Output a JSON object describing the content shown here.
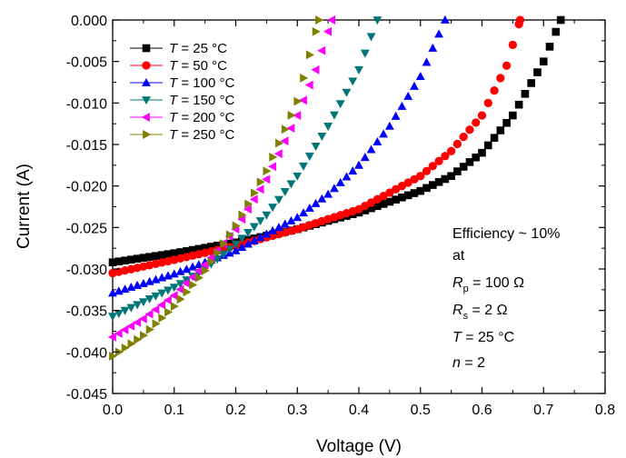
{
  "chart_data": {
    "type": "scatter",
    "xlabel": "Voltage (V)",
    "ylabel": "Current (A)",
    "xlim": [
      0.0,
      0.8
    ],
    "ylim": [
      -0.045,
      0.0
    ],
    "xticks": [
      "0.0",
      "0.1",
      "0.2",
      "0.3",
      "0.4",
      "0.5",
      "0.6",
      "0.7",
      "0.8"
    ],
    "yticks": [
      "0.000",
      "-0.005",
      "-0.010",
      "-0.015",
      "-0.020",
      "-0.025",
      "-0.030",
      "-0.035",
      "-0.040",
      "-0.045"
    ],
    "grid": false,
    "legend_position": "top-left",
    "series": [
      {
        "name_var": "T",
        "name_rest": " = 25 °C",
        "marker": "square",
        "color": "#000000",
        "isc": -0.0292,
        "voc": 0.728,
        "points": [
          [
            0.0,
            -0.0292
          ],
          [
            0.1,
            -0.0281
          ],
          [
            0.2,
            -0.0268
          ],
          [
            0.3,
            -0.0252
          ],
          [
            0.4,
            -0.0232
          ],
          [
            0.5,
            -0.0206
          ],
          [
            0.55,
            -0.0188
          ],
          [
            0.6,
            -0.016
          ],
          [
            0.65,
            -0.0115
          ],
          [
            0.7,
            -0.005
          ],
          [
            0.728,
            0.0
          ]
        ]
      },
      {
        "name_var": "T",
        "name_rest": " = 50 °C",
        "marker": "circle",
        "color": "#ff0000",
        "isc": -0.0305,
        "voc": 0.662,
        "points": [
          [
            0.0,
            -0.0305
          ],
          [
            0.1,
            -0.0289
          ],
          [
            0.2,
            -0.0272
          ],
          [
            0.3,
            -0.0252
          ],
          [
            0.4,
            -0.0228
          ],
          [
            0.5,
            -0.0188
          ],
          [
            0.55,
            -0.0158
          ],
          [
            0.6,
            -0.0115
          ],
          [
            0.64,
            -0.0055
          ],
          [
            0.662,
            0.0
          ]
        ]
      },
      {
        "name_var": "T",
        "name_rest": " = 100 °C",
        "marker": "triangle-up",
        "color": "#0000ff",
        "isc": -0.0329,
        "voc": 0.54,
        "points": [
          [
            0.0,
            -0.0329
          ],
          [
            0.1,
            -0.0306
          ],
          [
            0.2,
            -0.0278
          ],
          [
            0.3,
            -0.0238
          ],
          [
            0.35,
            -0.021
          ],
          [
            0.4,
            -0.0175
          ],
          [
            0.45,
            -0.0128
          ],
          [
            0.5,
            -0.0068
          ],
          [
            0.54,
            0.0
          ]
        ]
      },
      {
        "name_var": "T",
        "name_rest": " = 150 °C",
        "marker": "triangle-down",
        "color": "#007777",
        "isc": -0.0357,
        "voc": 0.43,
        "points": [
          [
            0.0,
            -0.0357
          ],
          [
            0.1,
            -0.0322
          ],
          [
            0.15,
            -0.03
          ],
          [
            0.2,
            -0.027
          ],
          [
            0.25,
            -0.0235
          ],
          [
            0.3,
            -0.0188
          ],
          [
            0.35,
            -0.0128
          ],
          [
            0.4,
            -0.006
          ],
          [
            0.43,
            0.0
          ]
        ]
      },
      {
        "name_var": "T",
        "name_rest": " = 200 °C",
        "marker": "triangle-left",
        "color": "#ff00ff",
        "isc": -0.0382,
        "voc": 0.356,
        "points": [
          [
            0.0,
            -0.0382
          ],
          [
            0.05,
            -0.036
          ],
          [
            0.1,
            -0.0332
          ],
          [
            0.15,
            -0.0295
          ],
          [
            0.2,
            -0.0252
          ],
          [
            0.25,
            -0.0192
          ],
          [
            0.3,
            -0.0115
          ],
          [
            0.33,
            -0.006
          ],
          [
            0.356,
            0.0
          ]
        ]
      },
      {
        "name_var": "T",
        "name_rest": " = 250 °C",
        "marker": "triangle-right",
        "color": "#808000",
        "isc": -0.0405,
        "voc": 0.335,
        "points": [
          [
            0.0,
            -0.0405
          ],
          [
            0.05,
            -0.038
          ],
          [
            0.1,
            -0.0345
          ],
          [
            0.15,
            -0.0302
          ],
          [
            0.2,
            -0.0248
          ],
          [
            0.25,
            -0.0182
          ],
          [
            0.3,
            -0.0098
          ],
          [
            0.335,
            0.0
          ]
        ]
      }
    ],
    "annotation": {
      "line1": "Efficiency ~ 10%",
      "line2": "at",
      "rp_var": "R",
      "rp_sub": "p",
      "rp_value": " = 100 Ω",
      "rs_var": "R",
      "rs_sub": "s",
      "rs_value": " = 2 Ω",
      "t_var": "T",
      "t_value": " = 25 °C",
      "n_var": "n",
      "n_value": " = 2"
    }
  }
}
